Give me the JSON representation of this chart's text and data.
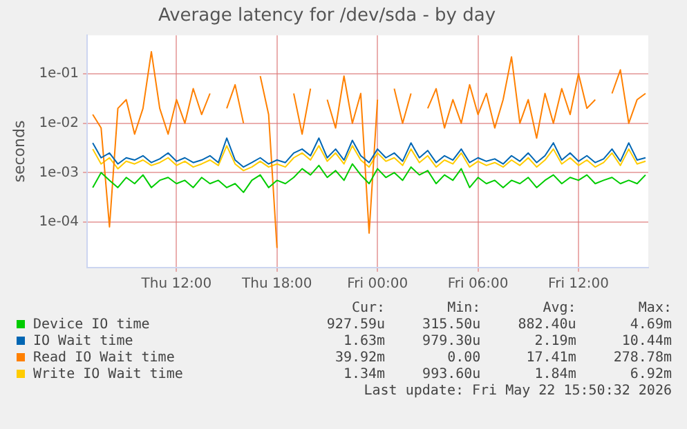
{
  "chart_data": {
    "type": "line",
    "title": "Average latency for /dev/sda - by day",
    "ylabel": "seconds",
    "log": "y",
    "grid": true,
    "legend": "bottom",
    "line_style": "solid",
    "marker": "none",
    "x": [
      "2026-05-21T07:00",
      "2026-05-21T07:30",
      "2026-05-21T08:00",
      "2026-05-21T08:30",
      "2026-05-21T09:00",
      "2026-05-21T09:30",
      "2026-05-21T10:00",
      "2026-05-21T10:30",
      "2026-05-21T11:00",
      "2026-05-21T11:30",
      "2026-05-21T12:00",
      "2026-05-21T12:30",
      "2026-05-21T13:00",
      "2026-05-21T13:30",
      "2026-05-21T14:00",
      "2026-05-21T14:30",
      "2026-05-21T15:00",
      "2026-05-21T15:30",
      "2026-05-21T16:00",
      "2026-05-21T16:30",
      "2026-05-21T17:00",
      "2026-05-21T17:30",
      "2026-05-21T18:00",
      "2026-05-21T18:30",
      "2026-05-21T19:00",
      "2026-05-21T19:30",
      "2026-05-21T20:00",
      "2026-05-21T20:30",
      "2026-05-21T21:00",
      "2026-05-21T21:30",
      "2026-05-21T22:00",
      "2026-05-21T22:30",
      "2026-05-21T23:00",
      "2026-05-21T23:30",
      "2026-05-22T00:00",
      "2026-05-22T00:30",
      "2026-05-22T01:00",
      "2026-05-22T01:30",
      "2026-05-22T02:00",
      "2026-05-22T02:30",
      "2026-05-22T03:00",
      "2026-05-22T03:30",
      "2026-05-22T04:00",
      "2026-05-22T04:30",
      "2026-05-22T05:00",
      "2026-05-22T05:30",
      "2026-05-22T06:00",
      "2026-05-22T06:30",
      "2026-05-22T07:00",
      "2026-05-22T07:30",
      "2026-05-22T08:00",
      "2026-05-22T08:30",
      "2026-05-22T09:00",
      "2026-05-22T09:30",
      "2026-05-22T10:00",
      "2026-05-22T10:30",
      "2026-05-22T11:00",
      "2026-05-22T11:30",
      "2026-05-22T12:00",
      "2026-05-22T12:30",
      "2026-05-22T13:00",
      "2026-05-22T13:30",
      "2026-05-22T14:00",
      "2026-05-22T14:30",
      "2026-05-22T15:00",
      "2026-05-22T15:30",
      "2026-05-22T16:00"
    ],
    "xlim": [
      "2026-05-21T06:40",
      "2026-05-22T16:10"
    ],
    "xticks": [
      {
        "value": "2026-05-21T12:00",
        "label": "Thu 12:00"
      },
      {
        "value": "2026-05-21T18:00",
        "label": "Thu 18:00"
      },
      {
        "value": "2026-05-22T00:00",
        "label": "Fri 00:00"
      },
      {
        "value": "2026-05-22T06:00",
        "label": "Fri 06:00"
      },
      {
        "value": "2026-05-22T12:00",
        "label": "Fri 12:00"
      }
    ],
    "ylim": [
      1.2e-05,
      0.6
    ],
    "yticks": [
      {
        "value": 0.0001,
        "label": "1e-04"
      },
      {
        "value": 0.001,
        "label": "1e-03"
      },
      {
        "value": 0.01,
        "label": "1e-02"
      },
      {
        "value": 0.1,
        "label": "1e-01"
      }
    ],
    "series": [
      {
        "name": "Device IO time",
        "color": "#00cc00",
        "values": [
          0.0005,
          0.001,
          0.0007,
          0.0005,
          0.0008,
          0.0006,
          0.0009,
          0.0005,
          0.0007,
          0.0008,
          0.0006,
          0.0007,
          0.0005,
          0.0008,
          0.0006,
          0.0007,
          0.0005,
          0.0006,
          0.0004,
          0.0007,
          0.0009,
          0.0005,
          0.0007,
          0.0006,
          0.0008,
          0.0012,
          0.0009,
          0.0014,
          0.0008,
          0.0011,
          0.0007,
          0.0015,
          0.0009,
          0.0006,
          0.0012,
          0.0008,
          0.001,
          0.0007,
          0.0013,
          0.0009,
          0.0011,
          0.0006,
          0.0009,
          0.0007,
          0.0012,
          0.0005,
          0.0008,
          0.0006,
          0.0007,
          0.0005,
          0.0007,
          0.0006,
          0.0008,
          0.0005,
          0.0007,
          0.0009,
          0.0006,
          0.0008,
          0.0007,
          0.0009,
          0.0006,
          0.0007,
          0.0008,
          0.0006,
          0.0007,
          0.0006,
          0.0009
        ]
      },
      {
        "name": "IO Wait time",
        "color": "#0066b3",
        "values": [
          0.004,
          0.002,
          0.0025,
          0.0015,
          0.002,
          0.0018,
          0.0022,
          0.0016,
          0.0019,
          0.0025,
          0.0017,
          0.002,
          0.0016,
          0.0018,
          0.0022,
          0.0016,
          0.005,
          0.0018,
          0.0013,
          0.0016,
          0.002,
          0.0015,
          0.0018,
          0.0016,
          0.0025,
          0.003,
          0.0022,
          0.005,
          0.002,
          0.003,
          0.0018,
          0.0045,
          0.0022,
          0.0016,
          0.003,
          0.002,
          0.0025,
          0.0017,
          0.004,
          0.002,
          0.0028,
          0.0016,
          0.0022,
          0.0018,
          0.003,
          0.0016,
          0.002,
          0.0017,
          0.0019,
          0.0015,
          0.0022,
          0.0017,
          0.0025,
          0.0016,
          0.0022,
          0.004,
          0.0018,
          0.0025,
          0.0017,
          0.0022,
          0.0016,
          0.0019,
          0.003,
          0.0017,
          0.004,
          0.0018,
          0.002
        ]
      },
      {
        "name": "Read IO Wait time",
        "color": "#ff8000",
        "values": [
          0.015,
          0.008,
          8e-05,
          0.02,
          0.03,
          0.006,
          0.02,
          0.28,
          0.02,
          0.006,
          0.03,
          0.01,
          0.05,
          0.015,
          0.04,
          null,
          0.02,
          0.06,
          0.01,
          null,
          0.09,
          0.015,
          3e-05,
          null,
          0.04,
          0.006,
          0.05,
          null,
          0.03,
          0.008,
          0.09,
          0.01,
          0.04,
          6e-05,
          0.03,
          null,
          0.05,
          0.01,
          0.04,
          null,
          0.02,
          0.05,
          0.008,
          0.03,
          0.01,
          0.06,
          0.015,
          0.04,
          0.008,
          0.03,
          0.22,
          0.01,
          0.03,
          0.005,
          0.04,
          0.01,
          0.05,
          0.015,
          0.1,
          0.02,
          0.03,
          null,
          0.04,
          0.12,
          0.01,
          0.03,
          0.04
        ]
      },
      {
        "name": "Write IO Wait time",
        "color": "#ffcc00",
        "values": [
          0.003,
          0.0015,
          0.002,
          0.0012,
          0.0017,
          0.0015,
          0.0018,
          0.0014,
          0.0016,
          0.002,
          0.0014,
          0.0017,
          0.0013,
          0.0015,
          0.0018,
          0.0014,
          0.0035,
          0.0015,
          0.0011,
          0.0013,
          0.0017,
          0.0013,
          0.0015,
          0.0013,
          0.002,
          0.0025,
          0.0018,
          0.0035,
          0.0017,
          0.0025,
          0.0015,
          0.0035,
          0.0018,
          0.0013,
          0.0025,
          0.0017,
          0.002,
          0.0014,
          0.003,
          0.0016,
          0.0022,
          0.0013,
          0.0018,
          0.0015,
          0.0025,
          0.0013,
          0.0017,
          0.0014,
          0.0016,
          0.0013,
          0.0018,
          0.0014,
          0.002,
          0.0013,
          0.0018,
          0.003,
          0.0015,
          0.002,
          0.0014,
          0.0018,
          0.0013,
          0.0016,
          0.0025,
          0.0014,
          0.003,
          0.0015,
          0.0017
        ]
      }
    ],
    "annotations": [
      "Cur:",
      "Min:",
      "Avg:",
      "Max:",
      "927.59u",
      "315.50u",
      "882.40u",
      "4.69m",
      "1.63m",
      "979.30u",
      "2.19m",
      "10.44m",
      "39.92m",
      "0.00",
      "17.41m",
      "278.78m",
      "1.34m",
      "993.60u",
      "1.84m",
      "6.92m",
      "Last update: Fri May 22 15:50:32 2026"
    ]
  }
}
